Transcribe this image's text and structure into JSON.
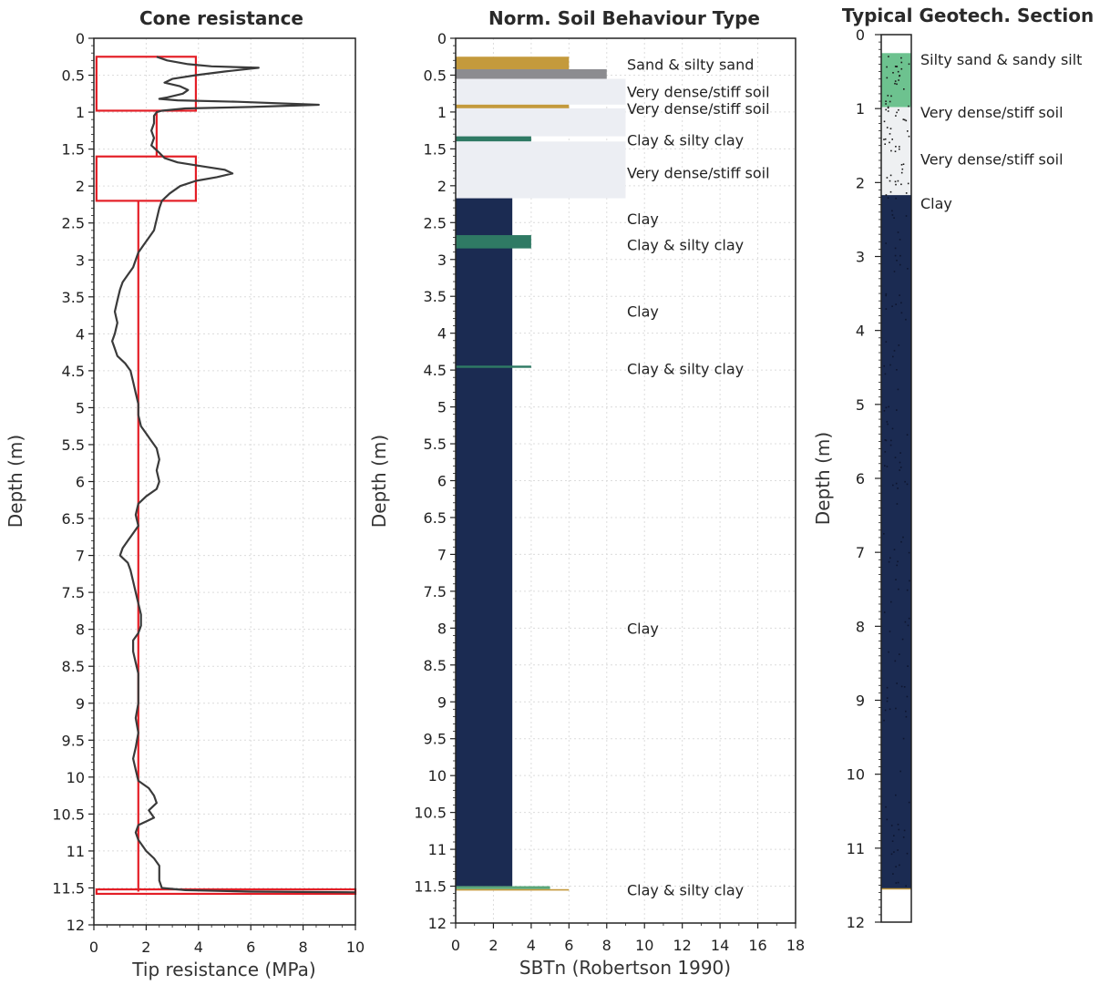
{
  "chart_data": [
    {
      "type": "line",
      "title": "Cone resistance",
      "xlabel": "Tip resistance (MPa)",
      "ylabel": "Depth (m)",
      "xlim": [
        0,
        10
      ],
      "ylim": [
        0,
        12
      ],
      "xticks": [
        "0",
        "2",
        "4",
        "6",
        "8",
        "10"
      ],
      "yticks": [
        "0",
        "0.5",
        "1",
        "1.5",
        "2",
        "2.5",
        "3",
        "3.5",
        "4",
        "4.5",
        "5",
        "5.5",
        "6",
        "6.5",
        "7",
        "7.5",
        "8",
        "8.5",
        "9",
        "9.5",
        "10",
        "10.5",
        "11",
        "11.5",
        "12"
      ],
      "series": [
        {
          "color": "#3a3a3a",
          "points": [
            [
              2.4,
              0.25
            ],
            [
              2.8,
              0.3
            ],
            [
              3.6,
              0.35
            ],
            [
              4.5,
              0.38
            ],
            [
              6.3,
              0.4
            ],
            [
              5.0,
              0.45
            ],
            [
              3.9,
              0.5
            ],
            [
              3.0,
              0.55
            ],
            [
              2.7,
              0.6
            ],
            [
              3.3,
              0.65
            ],
            [
              3.6,
              0.7
            ],
            [
              3.4,
              0.75
            ],
            [
              2.8,
              0.8
            ],
            [
              2.5,
              0.82
            ],
            [
              3.2,
              0.84
            ],
            [
              5.5,
              0.86
            ],
            [
              8.6,
              0.9
            ],
            [
              6.0,
              0.93
            ],
            [
              3.5,
              0.95
            ],
            [
              2.6,
              0.98
            ],
            [
              2.4,
              1.0
            ],
            [
              2.3,
              1.05
            ],
            [
              2.3,
              1.15
            ],
            [
              2.2,
              1.25
            ],
            [
              2.3,
              1.35
            ],
            [
              2.2,
              1.45
            ],
            [
              2.5,
              1.55
            ],
            [
              2.7,
              1.62
            ],
            [
              3.2,
              1.68
            ],
            [
              4.1,
              1.73
            ],
            [
              5.0,
              1.78
            ],
            [
              5.3,
              1.83
            ],
            [
              4.7,
              1.88
            ],
            [
              3.9,
              1.93
            ],
            [
              3.3,
              2.0
            ],
            [
              2.9,
              2.1
            ],
            [
              2.6,
              2.2
            ],
            [
              2.5,
              2.3
            ],
            [
              2.4,
              2.45
            ],
            [
              2.3,
              2.6
            ],
            [
              2.1,
              2.7
            ],
            [
              1.9,
              2.8
            ],
            [
              1.7,
              2.9
            ],
            [
              1.6,
              3.0
            ],
            [
              1.5,
              3.1
            ],
            [
              1.3,
              3.2
            ],
            [
              1.1,
              3.3
            ],
            [
              1.0,
              3.4
            ],
            [
              0.9,
              3.55
            ],
            [
              0.8,
              3.7
            ],
            [
              0.9,
              3.85
            ],
            [
              0.8,
              4.0
            ],
            [
              0.7,
              4.1
            ],
            [
              0.8,
              4.2
            ],
            [
              0.9,
              4.3
            ],
            [
              1.2,
              4.4
            ],
            [
              1.4,
              4.5
            ],
            [
              1.5,
              4.65
            ],
            [
              1.6,
              4.8
            ],
            [
              1.7,
              4.95
            ],
            [
              1.7,
              5.1
            ],
            [
              1.8,
              5.25
            ],
            [
              2.0,
              5.35
            ],
            [
              2.2,
              5.45
            ],
            [
              2.4,
              5.55
            ],
            [
              2.5,
              5.7
            ],
            [
              2.4,
              5.85
            ],
            [
              2.5,
              6.0
            ],
            [
              2.4,
              6.1
            ],
            [
              2.0,
              6.2
            ],
            [
              1.7,
              6.3
            ],
            [
              1.6,
              6.45
            ],
            [
              1.7,
              6.6
            ],
            [
              1.5,
              6.7
            ],
            [
              1.3,
              6.8
            ],
            [
              1.1,
              6.9
            ],
            [
              1.0,
              7.0
            ],
            [
              1.3,
              7.1
            ],
            [
              1.4,
              7.2
            ],
            [
              1.5,
              7.35
            ],
            [
              1.6,
              7.5
            ],
            [
              1.7,
              7.65
            ],
            [
              1.8,
              7.8
            ],
            [
              1.8,
              7.95
            ],
            [
              1.7,
              8.05
            ],
            [
              1.5,
              8.15
            ],
            [
              1.5,
              8.3
            ],
            [
              1.6,
              8.45
            ],
            [
              1.7,
              8.6
            ],
            [
              1.7,
              8.8
            ],
            [
              1.7,
              9.0
            ],
            [
              1.6,
              9.2
            ],
            [
              1.7,
              9.4
            ],
            [
              1.6,
              9.6
            ],
            [
              1.5,
              9.75
            ],
            [
              1.6,
              9.9
            ],
            [
              1.7,
              10.05
            ],
            [
              2.1,
              10.15
            ],
            [
              2.3,
              10.25
            ],
            [
              2.4,
              10.35
            ],
            [
              2.1,
              10.45
            ],
            [
              2.3,
              10.55
            ],
            [
              2.0,
              10.6
            ],
            [
              1.7,
              10.65
            ],
            [
              1.6,
              10.75
            ],
            [
              1.7,
              10.85
            ],
            [
              2.0,
              11.0
            ],
            [
              2.3,
              11.1
            ],
            [
              2.5,
              11.2
            ],
            [
              2.5,
              11.3
            ],
            [
              2.5,
              11.4
            ],
            [
              2.6,
              11.5
            ],
            [
              3.5,
              11.53
            ],
            [
              6.0,
              11.55
            ],
            [
              10.0,
              11.56
            ]
          ]
        }
      ],
      "layers": [
        {
          "x0": 0.1,
          "x1": 3.9,
          "y0": 0.25,
          "y1": 0.98
        },
        {
          "x0": 2.4,
          "x1": 2.4,
          "y0": 0.98,
          "y1": 1.6
        },
        {
          "x0": 0.1,
          "x1": 3.9,
          "y0": 1.6,
          "y1": 2.2
        },
        {
          "x0": 1.7,
          "x1": 1.7,
          "y0": 2.2,
          "y1": 11.55
        },
        {
          "x0": 0.1,
          "x1": 10.0,
          "y0": 11.52,
          "y1": 11.58
        }
      ],
      "layer_color": "#e41e26"
    },
    {
      "type": "bar",
      "title": "Norm. Soil Behaviour Type",
      "xlabel": "SBTn (Robertson 1990)",
      "ylabel": "Depth (m)",
      "xlim": [
        0,
        18
      ],
      "ylim": [
        0,
        12
      ],
      "xticks": [
        "0",
        "2",
        "4",
        "6",
        "8",
        "10",
        "12",
        "14",
        "16",
        "18"
      ],
      "yticks": [
        "0",
        "0.5",
        "1",
        "1.5",
        "2",
        "2.5",
        "3",
        "3.5",
        "4",
        "4.5",
        "5",
        "5.5",
        "6",
        "6.5",
        "7",
        "7.5",
        "8",
        "8.5",
        "9",
        "9.5",
        "10",
        "10.5",
        "11",
        "11.5",
        "12"
      ],
      "bars": [
        {
          "top": 0.25,
          "bottom": 0.42,
          "value": 6,
          "color": "#c49a3c"
        },
        {
          "top": 0.42,
          "bottom": 0.55,
          "value": 8,
          "color": "#8c8c90"
        },
        {
          "top": 0.55,
          "bottom": 0.9,
          "value": 9,
          "color": "#eceef3"
        },
        {
          "top": 0.9,
          "bottom": 0.95,
          "value": 6,
          "color": "#c49a3c"
        },
        {
          "top": 0.95,
          "bottom": 1.33,
          "value": 9,
          "color": "#eceef3"
        },
        {
          "top": 1.33,
          "bottom": 1.4,
          "value": 4,
          "color": "#2f7a64"
        },
        {
          "top": 1.4,
          "bottom": 2.17,
          "value": 9,
          "color": "#eceef3"
        },
        {
          "top": 2.17,
          "bottom": 11.5,
          "value": 3,
          "color": "#1b2b52"
        },
        {
          "top": 2.67,
          "bottom": 2.85,
          "value": 4,
          "color": "#2f7a64"
        },
        {
          "top": 4.44,
          "bottom": 4.47,
          "value": 4,
          "color": "#2f7a64"
        },
        {
          "top": 11.5,
          "bottom": 11.54,
          "value": 5,
          "color": "#5aa77a"
        },
        {
          "top": 11.54,
          "bottom": 11.56,
          "value": 6,
          "color": "#c49a3c"
        }
      ],
      "annotations": [
        {
          "text": "Sand & silty sand",
          "y": 0.35
        },
        {
          "text": "Very dense/stiff soil",
          "y": 0.72
        },
        {
          "text": "Very dense/stiff soil",
          "y": 0.95
        },
        {
          "text": "Clay & silty clay",
          "y": 1.38
        },
        {
          "text": "Very dense/stiff soil",
          "y": 1.82
        },
        {
          "text": "Clay",
          "y": 2.45
        },
        {
          "text": "Clay & silty clay",
          "y": 2.8
        },
        {
          "text": "Clay",
          "y": 3.7
        },
        {
          "text": "Clay & silty clay",
          "y": 4.48
        },
        {
          "text": "Clay",
          "y": 8.0
        },
        {
          "text": "Clay & silty clay",
          "y": 11.55
        }
      ]
    },
    {
      "type": "bar",
      "title": "Typical Geotech. Section",
      "ylabel": "Depth (m)",
      "ylim": [
        0,
        12
      ],
      "yticks": [
        "0",
        "1",
        "2",
        "3",
        "4",
        "5",
        "6",
        "7",
        "8",
        "9",
        "10",
        "11",
        "12"
      ],
      "layers": [
        {
          "top": 0.25,
          "bottom": 0.98,
          "color": "#6dc28f"
        },
        {
          "top": 0.98,
          "bottom": 2.17,
          "color": "#eef0f2"
        },
        {
          "top": 2.17,
          "bottom": 11.55,
          "color": "#1b2b52"
        }
      ],
      "annotations": [
        {
          "text": "Silty sand & sandy silt",
          "y": 0.33
        },
        {
          "text": "Very dense/stiff soil",
          "y": 1.05
        },
        {
          "text": "Very dense/stiff soil",
          "y": 1.68
        },
        {
          "text": "Clay",
          "y": 2.28
        }
      ]
    }
  ]
}
